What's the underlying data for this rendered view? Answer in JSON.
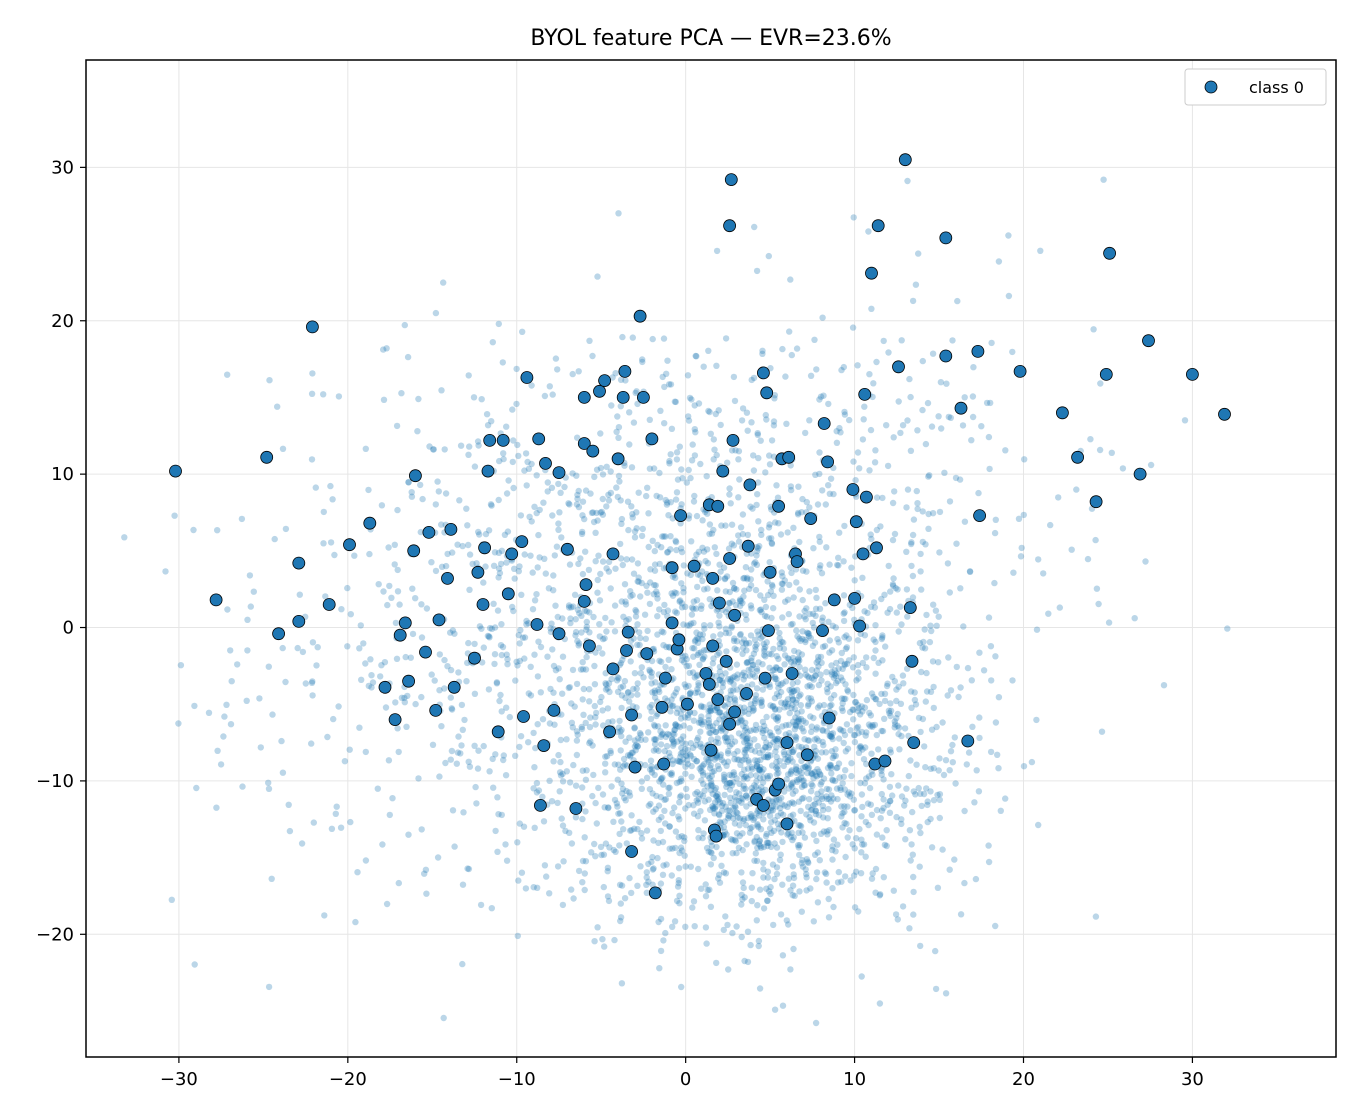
{
  "chart_data": {
    "type": "scatter",
    "title": "BYOL feature PCA — EVR=23.6%",
    "xlabel": "",
    "ylabel": "",
    "xlim": [
      -35.5,
      38.5
    ],
    "ylim": [
      -28,
      37
    ],
    "x_ticks": [
      -30,
      -20,
      -10,
      0,
      10,
      20,
      30
    ],
    "y_ticks": [
      -20,
      -10,
      0,
      10,
      20,
      30
    ],
    "x_tick_labels": [
      "−30",
      "−20",
      "−10",
      "0",
      "10",
      "20",
      "30"
    ],
    "y_tick_labels": [
      "−20",
      "−10",
      "0",
      "10",
      "20",
      "30"
    ],
    "grid": true,
    "legend_position": "top-right",
    "colors": {
      "series": "#1f77b4",
      "edge": "#000000",
      "grid": "#e6e6e6"
    },
    "background_series": {
      "name": "",
      "description_count": 3500,
      "center": [
        2,
        -2
      ],
      "opacity": 0.3
    },
    "series": [
      {
        "name": "class 0",
        "points": [
          [
            -30.2,
            10.2
          ],
          [
            -27.8,
            1.8
          ],
          [
            -24.8,
            11.1
          ],
          [
            -24.1,
            -0.4
          ],
          [
            -22.9,
            4.2
          ],
          [
            -22.9,
            0.4
          ],
          [
            -22.1,
            19.6
          ],
          [
            -21.1,
            1.5
          ],
          [
            -19.9,
            5.4
          ],
          [
            -18.7,
            6.8
          ],
          [
            -17.8,
            -3.9
          ],
          [
            -17.2,
            -6.0
          ],
          [
            -16.9,
            -0.5
          ],
          [
            -16.6,
            0.3
          ],
          [
            -16.4,
            -3.5
          ],
          [
            -16.1,
            5.0
          ],
          [
            -16.0,
            9.9
          ],
          [
            -15.4,
            -1.6
          ],
          [
            -15.2,
            6.2
          ],
          [
            -14.8,
            -5.4
          ],
          [
            -14.6,
            0.5
          ],
          [
            -13.9,
            6.4
          ],
          [
            -13.7,
            -3.9
          ],
          [
            -14.1,
            3.2
          ],
          [
            -12.5,
            -2.0
          ],
          [
            -12.3,
            3.6
          ],
          [
            -12.0,
            1.5
          ],
          [
            -11.9,
            5.2
          ],
          [
            -11.7,
            10.2
          ],
          [
            -11.6,
            12.2
          ],
          [
            -11.1,
            -6.8
          ],
          [
            -10.8,
            12.2
          ],
          [
            -10.5,
            2.2
          ],
          [
            -10.3,
            4.8
          ],
          [
            -9.7,
            5.6
          ],
          [
            -9.6,
            -5.8
          ],
          [
            -9.4,
            16.3
          ],
          [
            -8.8,
            0.2
          ],
          [
            -8.7,
            12.3
          ],
          [
            -8.6,
            -11.6
          ],
          [
            -8.4,
            -7.7
          ],
          [
            -8.3,
            10.7
          ],
          [
            -7.8,
            -5.4
          ],
          [
            -7.5,
            -0.4
          ],
          [
            -7.5,
            10.1
          ],
          [
            -7.0,
            5.1
          ],
          [
            -6.5,
            -11.8
          ],
          [
            -6.0,
            12.0
          ],
          [
            -6.0,
            15.0
          ],
          [
            -6.0,
            1.7
          ],
          [
            -5.9,
            2.8
          ],
          [
            -5.7,
            -1.2
          ],
          [
            -5.5,
            11.5
          ],
          [
            -5.1,
            15.4
          ],
          [
            -4.8,
            16.1
          ],
          [
            -4.5,
            -6.8
          ],
          [
            -4.3,
            4.8
          ],
          [
            -4.3,
            -2.7
          ],
          [
            -4.0,
            11.0
          ],
          [
            -3.7,
            15.0
          ],
          [
            -3.6,
            16.7
          ],
          [
            -3.4,
            -0.3
          ],
          [
            -3.5,
            -1.5
          ],
          [
            -3.2,
            -5.7
          ],
          [
            -3.2,
            -14.6
          ],
          [
            -3.0,
            -9.1
          ],
          [
            -2.7,
            20.3
          ],
          [
            -2.5,
            15.0
          ],
          [
            -2.3,
            -1.7
          ],
          [
            -2.0,
            12.3
          ],
          [
            -1.8,
            -17.3
          ],
          [
            -1.4,
            -5.2
          ],
          [
            -1.3,
            -8.9
          ],
          [
            -1.2,
            -3.3
          ],
          [
            -0.8,
            3.9
          ],
          [
            -0.8,
            0.3
          ],
          [
            -0.5,
            -1.4
          ],
          [
            -0.4,
            -0.8
          ],
          [
            -0.3,
            7.3
          ],
          [
            0.1,
            -5.0
          ],
          [
            0.5,
            4.0
          ],
          [
            1.2,
            -3.0
          ],
          [
            1.4,
            8.0
          ],
          [
            1.4,
            -3.7
          ],
          [
            1.5,
            -8.0
          ],
          [
            1.6,
            -1.2
          ],
          [
            1.6,
            3.2
          ],
          [
            1.7,
            -13.2
          ],
          [
            1.8,
            -13.6
          ],
          [
            1.9,
            -4.7
          ],
          [
            1.9,
            7.9
          ],
          [
            2.0,
            1.6
          ],
          [
            2.2,
            10.2
          ],
          [
            2.4,
            -2.2
          ],
          [
            2.6,
            -6.3
          ],
          [
            2.6,
            4.5
          ],
          [
            2.6,
            26.2
          ],
          [
            2.7,
            29.2
          ],
          [
            2.8,
            12.2
          ],
          [
            2.9,
            -5.5
          ],
          [
            2.9,
            0.8
          ],
          [
            3.6,
            -4.3
          ],
          [
            3.7,
            5.3
          ],
          [
            3.8,
            9.3
          ],
          [
            4.2,
            -11.2
          ],
          [
            4.6,
            -11.6
          ],
          [
            4.6,
            16.6
          ],
          [
            4.7,
            -3.3
          ],
          [
            4.8,
            15.3
          ],
          [
            4.9,
            -0.2
          ],
          [
            5.0,
            3.6
          ],
          [
            5.3,
            -10.6
          ],
          [
            5.5,
            7.9
          ],
          [
            5.5,
            -10.2
          ],
          [
            5.7,
            11.0
          ],
          [
            6.0,
            -12.8
          ],
          [
            6.0,
            -7.5
          ],
          [
            6.1,
            11.1
          ],
          [
            6.3,
            -3.0
          ],
          [
            6.5,
            4.8
          ],
          [
            6.6,
            4.3
          ],
          [
            7.2,
            -8.3
          ],
          [
            7.4,
            7.1
          ],
          [
            8.1,
            -0.2
          ],
          [
            8.2,
            13.3
          ],
          [
            8.4,
            10.8
          ],
          [
            8.5,
            -5.9
          ],
          [
            8.8,
            1.8
          ],
          [
            9.9,
            9.0
          ],
          [
            10.0,
            1.9
          ],
          [
            10.1,
            6.9
          ],
          [
            10.3,
            0.1
          ],
          [
            10.5,
            4.8
          ],
          [
            10.6,
            15.2
          ],
          [
            10.7,
            8.5
          ],
          [
            11.0,
            23.1
          ],
          [
            11.2,
            -8.9
          ],
          [
            11.3,
            5.2
          ],
          [
            11.4,
            26.2
          ],
          [
            11.8,
            -8.7
          ],
          [
            12.6,
            17.0
          ],
          [
            13.0,
            30.5
          ],
          [
            13.3,
            1.3
          ],
          [
            13.4,
            -2.2
          ],
          [
            13.5,
            -7.5
          ],
          [
            15.4,
            17.7
          ],
          [
            15.4,
            25.4
          ],
          [
            16.3,
            14.3
          ],
          [
            16.7,
            -7.4
          ],
          [
            17.3,
            18.0
          ],
          [
            17.4,
            7.3
          ],
          [
            19.8,
            16.7
          ],
          [
            22.3,
            14.0
          ],
          [
            23.2,
            11.1
          ],
          [
            24.3,
            8.2
          ],
          [
            24.9,
            16.5
          ],
          [
            25.1,
            24.4
          ],
          [
            26.9,
            10.0
          ],
          [
            27.4,
            18.7
          ],
          [
            30.0,
            16.5
          ],
          [
            31.9,
            13.9
          ]
        ]
      }
    ]
  }
}
